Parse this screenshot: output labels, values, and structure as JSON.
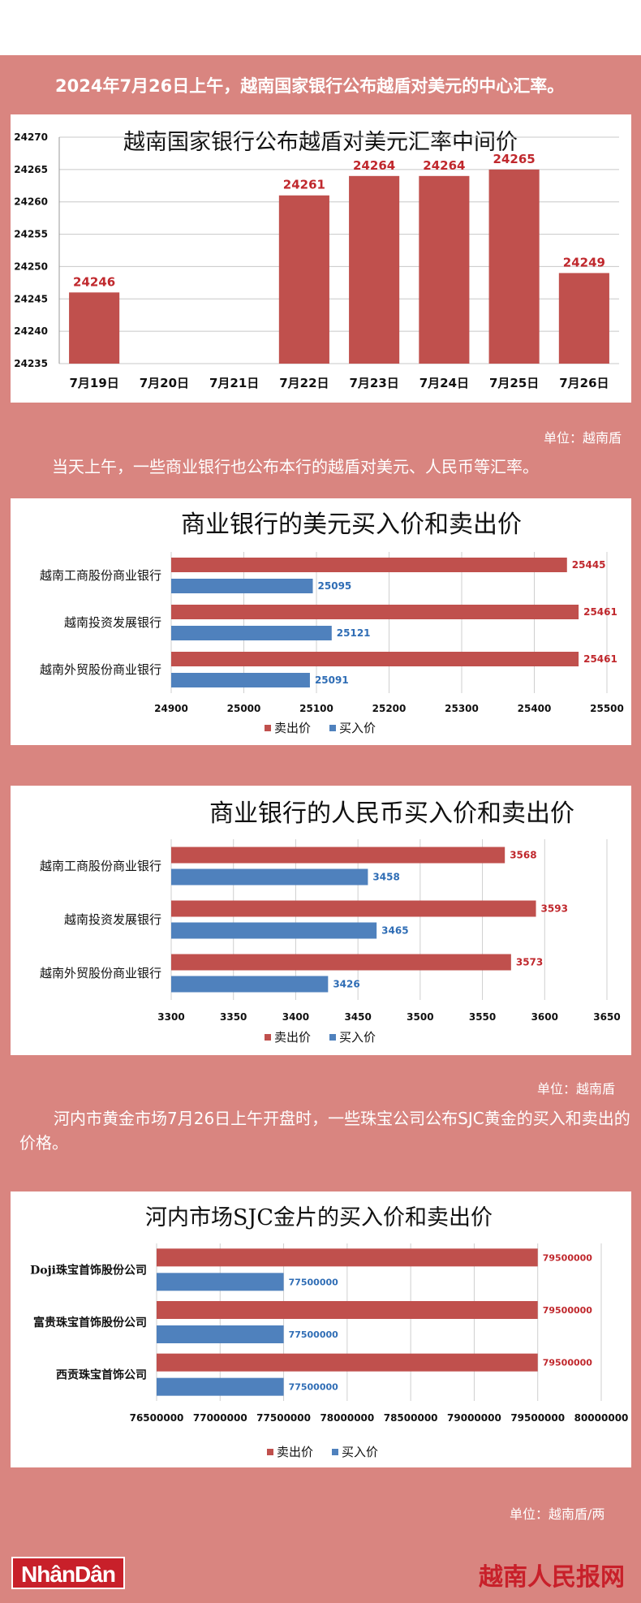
{
  "texts": {
    "intro": "2024年7月26日上午，越南国家银行公布越盾对美元的中心汇率。",
    "unit1": "单位：越南盾",
    "para2": "当天上午，一些商业银行也公布本行的越盾对美元、人民币等汇率。",
    "unit2": "单位：越南盾",
    "para3": "河内市黄金市场7月26日上午开盘时，一些珠宝公司公布SJC黄金的买入和卖出的价格。",
    "unit3": "单位：越南盾/两",
    "logo_left": "NhânDân",
    "logo_right": "越南人民报网"
  },
  "colors": {
    "background": "#d98580",
    "sell": "#c0504d",
    "buy": "#4f81bd",
    "sell_label": "#c0282d",
    "buy_label": "#2f6db5"
  },
  "chart_data": [
    {
      "type": "bar",
      "title": "越南国家银行公布越盾对美元汇率中间价",
      "categories": [
        "7月19日",
        "7月20日",
        "7月21日",
        "7月22日",
        "7月23日",
        "7月24日",
        "7月25日",
        "7月26日"
      ],
      "values": [
        24246,
        null,
        null,
        24261,
        24264,
        24264,
        24265,
        24249
      ],
      "labels": [
        "24246",
        "",
        "",
        "24261",
        "24264",
        "24264",
        "24265",
        "24249"
      ],
      "ylim": [
        24235,
        24270
      ],
      "yticks": [
        "24235",
        "24240",
        "24245",
        "24250",
        "24255",
        "24260",
        "24265",
        "24270"
      ],
      "grid": true
    },
    {
      "type": "bar",
      "orientation": "horizontal",
      "title": "商业银行的美元买入价和卖出价",
      "categories": [
        "越南工商股份商业银行",
        "越南投资发展银行",
        "越南外贸股份商业银行"
      ],
      "series": [
        {
          "name": "卖出价",
          "values": [
            25445,
            25461,
            25461
          ],
          "labels": [
            "25445",
            "25461",
            "25461"
          ]
        },
        {
          "name": "买入价",
          "values": [
            25095,
            25121,
            25091
          ],
          "labels": [
            "25095",
            "25121",
            "25091"
          ]
        }
      ],
      "xlim": [
        24900,
        25500
      ],
      "xticks": [
        "24900",
        "25000",
        "25100",
        "25200",
        "25300",
        "25400",
        "25500"
      ],
      "legend": [
        "卖出价",
        "买入价"
      ],
      "legend_position": "bottom",
      "grid": true
    },
    {
      "type": "bar",
      "orientation": "horizontal",
      "title": "商业银行的人民币买入价和卖出价",
      "categories": [
        "越南工商股份商业银行",
        "越南投资发展银行",
        "越南外贸股份商业银行"
      ],
      "series": [
        {
          "name": "卖出价",
          "values": [
            3568,
            3593,
            3573
          ],
          "labels": [
            "3568",
            "3593",
            "3573"
          ]
        },
        {
          "name": "买入价",
          "values": [
            3458,
            3465,
            3426
          ],
          "labels": [
            "3458",
            "3465",
            "3426"
          ]
        }
      ],
      "xlim": [
        3300,
        3650
      ],
      "xticks": [
        "3300",
        "3350",
        "3400",
        "3450",
        "3500",
        "3550",
        "3600",
        "3650"
      ],
      "legend": [
        "卖出价",
        "买入价"
      ],
      "legend_position": "bottom",
      "grid": true
    },
    {
      "type": "bar",
      "orientation": "horizontal",
      "title": "河内市场SJC金片的买入价和卖出价",
      "categories": [
        "Doji珠宝首饰股份公司",
        "富贵珠宝首饰股份公司",
        "西贡珠宝首饰公司"
      ],
      "series": [
        {
          "name": "卖出价",
          "values": [
            79500000,
            79500000,
            79500000
          ],
          "labels": [
            "79500000",
            "79500000",
            "79500000"
          ]
        },
        {
          "name": "买入价",
          "values": [
            77500000,
            77500000,
            77500000
          ],
          "labels": [
            "77500000",
            "77500000",
            "77500000"
          ]
        }
      ],
      "xlim": [
        76500000,
        80000000
      ],
      "xticks": [
        "76500000",
        "77000000",
        "77500000",
        "78000000",
        "78500000",
        "79000000",
        "79500000",
        "80000000"
      ],
      "legend": [
        "卖出价",
        "买入价"
      ],
      "legend_position": "bottom",
      "grid": true
    }
  ]
}
